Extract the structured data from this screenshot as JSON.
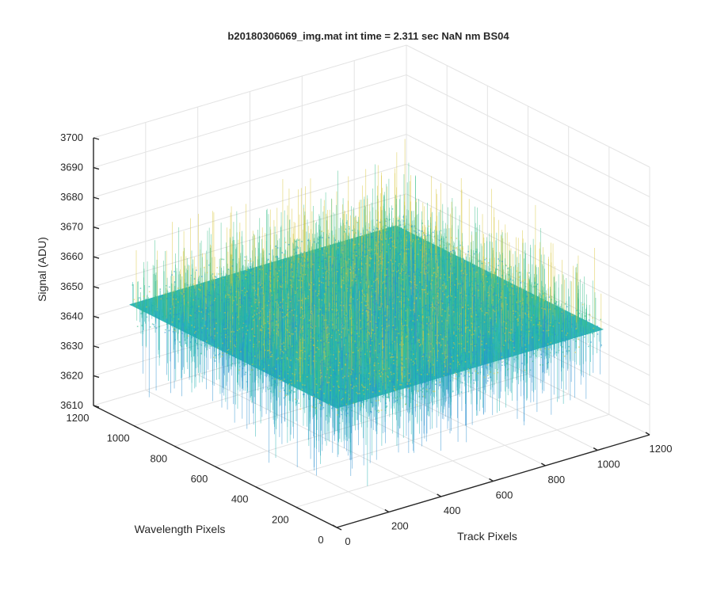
{
  "chart_data": {
    "type": "surface3d",
    "title": "b20180306069_img.mat int time = 2.311 sec  NaN nm BS04",
    "xlabel": "Track Pixels",
    "ylabel": "Wavelength Pixels",
    "zlabel": "Signal (ADU)",
    "xlim": [
      0,
      1200
    ],
    "ylim": [
      0,
      1200
    ],
    "zlim": [
      3610,
      3700
    ],
    "x_ticks": [
      0,
      200,
      400,
      600,
      800,
      1000,
      1200
    ],
    "y_ticks": [
      0,
      200,
      400,
      600,
      800,
      1000,
      1200
    ],
    "z_ticks": [
      3610,
      3620,
      3630,
      3640,
      3650,
      3660,
      3670,
      3680,
      3690,
      3700
    ],
    "data_extent": {
      "x": [
        0,
        1024
      ],
      "y": [
        0,
        1024
      ]
    },
    "signal_mean": 3650,
    "signal_range": [
      3610,
      3690
    ],
    "grid": true,
    "colormap": "parula",
    "colors": {
      "low": "#2a8fd0",
      "mid": "#1fb0b0",
      "midhigh": "#3cbf8a",
      "high": "#d9c63c",
      "axis": "#262626",
      "grid": "#e3e3e3"
    }
  }
}
